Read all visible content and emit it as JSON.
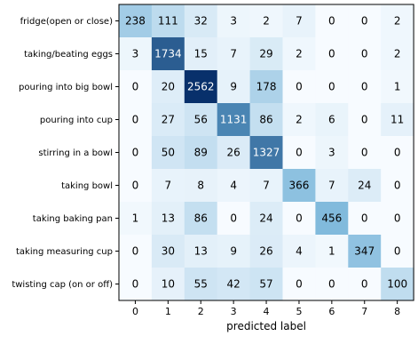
{
  "chart_data": {
    "type": "heatmap",
    "title": "",
    "xlabel": "predicted label",
    "ylabel": "",
    "colormap": "Blues",
    "colors": {
      "low": "#f7fbff",
      "mid": "#6baed6",
      "high": "#08306b"
    },
    "row_labels": [
      "fridge(open or close)",
      "taking/beating eggs",
      "pouring into big bowl",
      "pouring into cup",
      "stirring in a bowl",
      "taking bowl",
      "taking baking pan",
      "taking measuring cup",
      "twisting cap (on or off)"
    ],
    "col_labels": [
      "0",
      "1",
      "2",
      "3",
      "4",
      "5",
      "6",
      "7",
      "8"
    ],
    "values": [
      [
        238,
        111,
        32,
        3,
        2,
        7,
        0,
        0,
        2
      ],
      [
        3,
        1734,
        15,
        7,
        29,
        2,
        0,
        0,
        2
      ],
      [
        0,
        20,
        2562,
        9,
        178,
        0,
        0,
        0,
        1
      ],
      [
        0,
        27,
        56,
        1131,
        86,
        2,
        6,
        0,
        11
      ],
      [
        0,
        50,
        89,
        26,
        1327,
        0,
        3,
        0,
        0
      ],
      [
        0,
        7,
        8,
        4,
        7,
        366,
        7,
        24,
        0
      ],
      [
        1,
        13,
        86,
        0,
        24,
        0,
        456,
        0,
        0
      ],
      [
        0,
        30,
        13,
        9,
        26,
        4,
        1,
        347,
        0
      ],
      [
        0,
        10,
        55,
        42,
        57,
        0,
        0,
        0,
        100
      ]
    ],
    "grid": false,
    "legend": "none"
  }
}
